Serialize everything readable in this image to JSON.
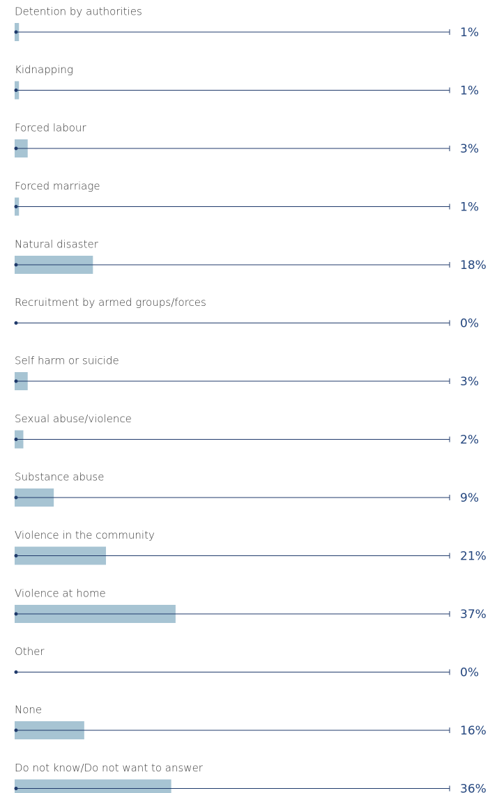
{
  "chart_data": {
    "type": "bar",
    "categories": [
      "Detention by authorities",
      "Kidnapping",
      "Forced labour",
      "Forced marriage",
      "Natural disaster",
      "Recruitment by armed groups/forces",
      "Self harm or suicide",
      "Sexual abuse/violence",
      "Substance abuse",
      "Violence in the community",
      "Violence at home",
      "Other",
      "None",
      "Do not know/Do not want to answer"
    ],
    "values": [
      1,
      1,
      3,
      1,
      18,
      0,
      3,
      2,
      9,
      21,
      37,
      0,
      16,
      36
    ],
    "value_labels": [
      "1%",
      "1%",
      "3%",
      "1%",
      "18%",
      "0%",
      "3%",
      "2%",
      "9%",
      "21%",
      "37%",
      "0%",
      "16%",
      "36%"
    ],
    "color": "#a7c4d3",
    "xlim": [
      0,
      100
    ]
  }
}
